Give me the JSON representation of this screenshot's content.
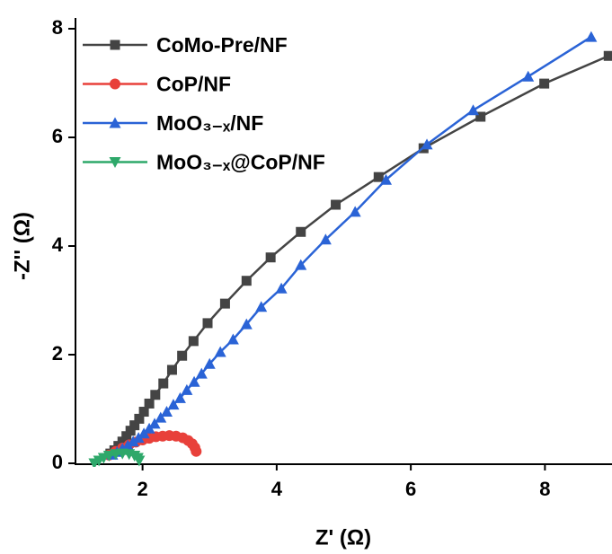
{
  "chart_data": {
    "type": "scatter",
    "x_label": "Z' (Ω)",
    "y_label": "-Z'' (Ω)",
    "xlim": [
      1,
      9
    ],
    "ylim": [
      0,
      8
    ],
    "xticks": [
      2,
      4,
      6,
      8
    ],
    "yticks": [
      0,
      2,
      4,
      6,
      8
    ],
    "legend": "upper-left",
    "series": [
      {
        "name": "CoMo-Pre/NF",
        "color": "#444444",
        "marker": "square",
        "x": [
          1.52,
          1.58,
          1.64,
          1.7,
          1.76,
          1.82,
          1.88,
          1.95,
          2.02,
          2.1,
          2.19,
          2.31,
          2.44,
          2.59,
          2.76,
          2.97,
          3.23,
          3.55,
          3.91,
          4.36,
          4.88,
          5.52,
          6.19,
          7.04,
          7.99,
          8.95
        ],
        "values": [
          0.18,
          0.24,
          0.32,
          0.4,
          0.5,
          0.6,
          0.7,
          0.82,
          0.95,
          1.1,
          1.26,
          1.47,
          1.72,
          1.98,
          2.25,
          2.58,
          2.94,
          3.36,
          3.79,
          4.26,
          4.76,
          5.27,
          5.8,
          6.38,
          6.99,
          7.5
        ]
      },
      {
        "name": "CoP/NF",
        "color": "#e8403a",
        "marker": "circle",
        "x": [
          1.5,
          1.6,
          1.7,
          1.8,
          1.9,
          2.0,
          2.1,
          2.2,
          2.3,
          2.4,
          2.5,
          2.6,
          2.68,
          2.74,
          2.78,
          2.8
        ],
        "values": [
          0.15,
          0.22,
          0.28,
          0.34,
          0.39,
          0.43,
          0.46,
          0.49,
          0.5,
          0.51,
          0.5,
          0.47,
          0.42,
          0.36,
          0.29,
          0.22
        ]
      },
      {
        "name": "MoO₃₋ₓ/NF",
        "color": "#2a63d6",
        "marker": "triangle-up",
        "x": [
          1.55,
          1.62,
          1.7,
          1.78,
          1.86,
          1.94,
          2.02,
          2.1,
          2.18,
          2.27,
          2.36,
          2.46,
          2.56,
          2.66,
          2.77,
          2.88,
          3.0,
          3.16,
          3.35,
          3.55,
          3.77,
          4.07,
          4.36,
          4.73,
          5.17,
          5.63,
          6.24,
          6.93,
          7.75,
          8.69
        ],
        "values": [
          0.16,
          0.21,
          0.27,
          0.33,
          0.4,
          0.47,
          0.55,
          0.64,
          0.73,
          0.84,
          0.95,
          1.08,
          1.2,
          1.35,
          1.5,
          1.65,
          1.83,
          2.05,
          2.28,
          2.56,
          2.88,
          3.22,
          3.65,
          4.12,
          4.63,
          5.22,
          5.87,
          6.5,
          7.12,
          7.85
        ]
      },
      {
        "name": "MoO₃₋ₓ@CoP/NF",
        "color": "#2ea86a",
        "marker": "triangle-down",
        "x": [
          1.28,
          1.35,
          1.42,
          1.5,
          1.6,
          1.7,
          1.8,
          1.88,
          1.93,
          1.95
        ],
        "values": [
          0.0,
          0.05,
          0.1,
          0.14,
          0.17,
          0.18,
          0.17,
          0.14,
          0.1,
          0.05
        ]
      }
    ]
  }
}
